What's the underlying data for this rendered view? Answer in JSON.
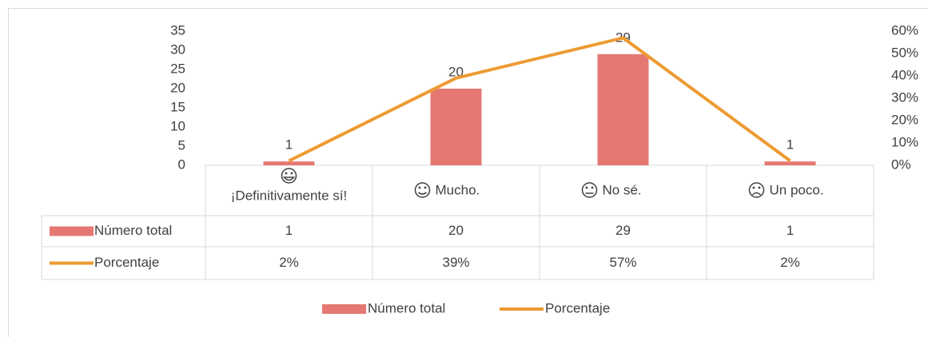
{
  "chart_data": {
    "type": "bar",
    "categories": [
      "¡Definitivamente sí!",
      "Mucho.",
      "No sé.",
      "Un poco."
    ],
    "series": [
      {
        "name": "Número total",
        "type": "bar",
        "color": "#e57873",
        "values": [
          1,
          20,
          29,
          1
        ]
      },
      {
        "name": "Porcentaje",
        "type": "line",
        "axis": "y2",
        "color": "#ed9b33",
        "values": [
          2,
          39,
          57,
          2
        ],
        "value_labels": [
          "2%",
          "39%",
          "57%",
          "2%"
        ]
      }
    ],
    "ylim": [
      0,
      35
    ],
    "yticks": [
      0,
      5,
      10,
      15,
      20,
      25,
      30,
      35
    ],
    "y2lim": [
      0,
      60
    ],
    "y2ticks": [
      {
        "value": 0,
        "label": "0%"
      },
      {
        "value": 10,
        "label": "10%"
      },
      {
        "value": 20,
        "label": "20%"
      },
      {
        "value": 30,
        "label": "30%"
      },
      {
        "value": 40,
        "label": "40%"
      },
      {
        "value": 50,
        "label": "50%"
      },
      {
        "value": 60,
        "label": "60%"
      }
    ],
    "legend": "bottom",
    "data_table": true
  }
}
